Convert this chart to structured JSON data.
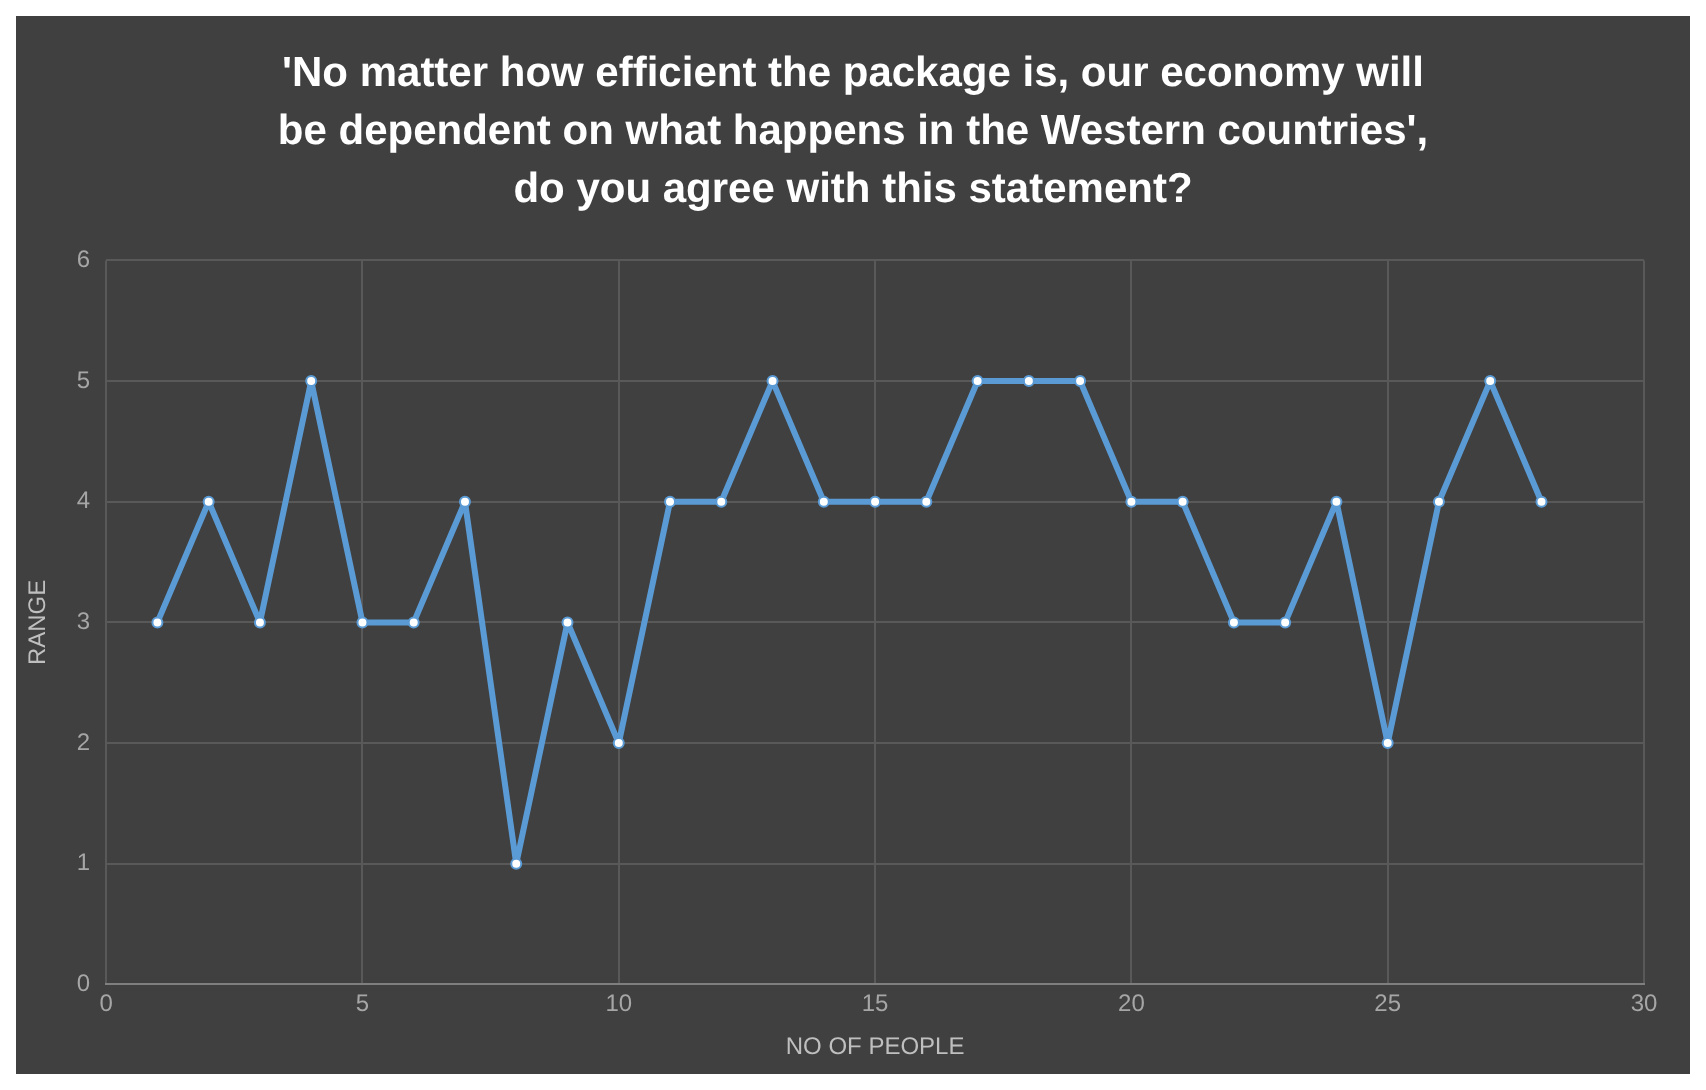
{
  "chart_data": {
    "type": "line",
    "title": "'No matter how efficient the package is, our economy will be dependent on what happens in the Western countries', do you agree with this statement?",
    "xlabel": "NO OF PEOPLE",
    "ylabel": "RANGE",
    "x": [
      1,
      2,
      3,
      4,
      5,
      6,
      7,
      8,
      9,
      10,
      11,
      12,
      13,
      14,
      15,
      16,
      17,
      18,
      19,
      20,
      21,
      22,
      23,
      24,
      25,
      26,
      27,
      28
    ],
    "series": [
      {
        "color": "#5b9bd5",
        "values": [
          3,
          4,
          3,
          5,
          3,
          3,
          4,
          1,
          3,
          2,
          4,
          4,
          5,
          4,
          4,
          4,
          5,
          5,
          5,
          4,
          4,
          3,
          3,
          4,
          2,
          4,
          5,
          4
        ]
      }
    ],
    "xlim": [
      0,
      30
    ],
    "xticks": [
      0,
      5,
      10,
      15,
      20,
      25,
      30
    ],
    "ylim": [
      0,
      6
    ],
    "yticks": [
      0,
      1,
      2,
      3,
      4,
      5,
      6
    ],
    "grid": true,
    "legend": false,
    "marker": "circle",
    "line_style": "solid"
  }
}
